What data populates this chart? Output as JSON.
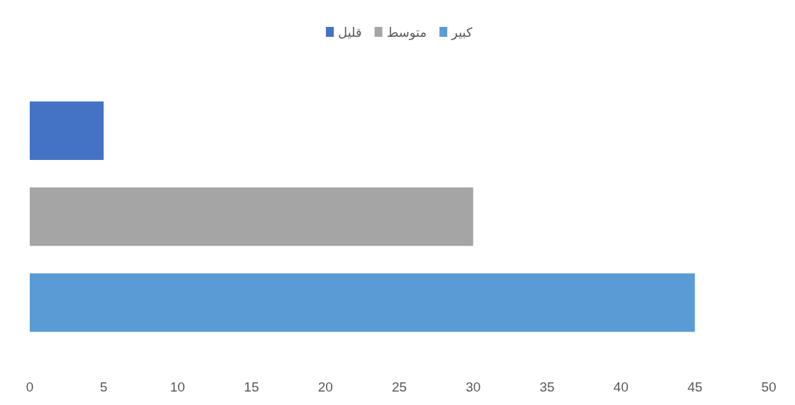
{
  "chart_data": {
    "type": "bar",
    "orientation": "horizontal",
    "categories": [
      null
    ],
    "series": [
      {
        "name": "قليل",
        "color": "#4472c4",
        "values": [
          5
        ]
      },
      {
        "name": "متوسط",
        "color": "#a5a5a5",
        "values": [
          30
        ]
      },
      {
        "name": "كبير",
        "color": "#5b9bd5",
        "values": [
          45
        ]
      }
    ],
    "xlim": [
      0,
      50
    ],
    "xticks": [
      0,
      5,
      10,
      15,
      20,
      25,
      30,
      35,
      40,
      45,
      50
    ],
    "legend": "top"
  }
}
